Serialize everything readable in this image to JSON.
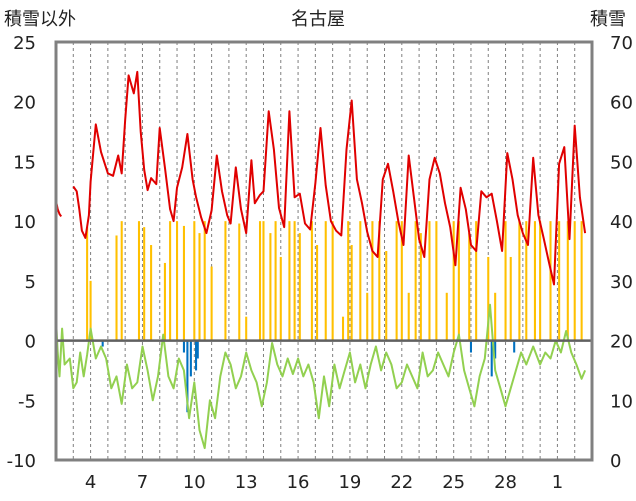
{
  "chart_data": {
    "type": "line",
    "title": "名古屋",
    "left_axis_label": "積雪以外",
    "right_axis_label": "積雪",
    "left_axis": {
      "range": [
        -10,
        25
      ],
      "ticks": [
        "-10",
        "-5",
        "0",
        "5",
        "10",
        "15",
        "20",
        "25"
      ]
    },
    "right_axis": {
      "range": [
        0,
        70
      ],
      "ticks": [
        "0",
        "10",
        "20",
        "30",
        "40",
        "50",
        "60",
        "70"
      ]
    },
    "x_range": [
      2,
      33
    ],
    "x_ticks": [
      "4",
      "7",
      "10",
      "13",
      "16",
      "19",
      "22",
      "25",
      "28",
      "1"
    ],
    "x_tick_positions": [
      4,
      7,
      10,
      13,
      16,
      19,
      22,
      25,
      28,
      31
    ],
    "grid": "vertical dashed",
    "colors": {
      "max_temp": "#e00000",
      "min_temp": "#92d050",
      "sunshine": "#ffc000",
      "precipitation": "#0070c0",
      "snow_depth": "#7030a0",
      "zero_line": "#606060",
      "frame": "#808080"
    },
    "series": [
      {
        "key": "max_temp",
        "axis": "left",
        "x": [
          2.0,
          2.1,
          2.2,
          2.3,
          2.5,
          2.7,
          3.0,
          3.2,
          3.35,
          3.5,
          3.7,
          3.9,
          4.0,
          4.3,
          4.6,
          5.0,
          5.3,
          5.6,
          5.8,
          6.0,
          6.2,
          6.5,
          6.7,
          6.9,
          7.1,
          7.3,
          7.5,
          7.8,
          8.0,
          8.3,
          8.6,
          8.8,
          9.0,
          9.3,
          9.6,
          9.9,
          10.1,
          10.4,
          10.7,
          11.0,
          11.3,
          11.6,
          11.9,
          12.1,
          12.4,
          12.7,
          13.0,
          13.3,
          13.5,
          13.8,
          14.0,
          14.3,
          14.6,
          14.9,
          15.2,
          15.5,
          15.8,
          16.1,
          16.4,
          16.7,
          17.0,
          17.3,
          17.6,
          17.9,
          18.2,
          18.5,
          18.8,
          19.1,
          19.4,
          19.7,
          20.0,
          20.3,
          20.6,
          20.9,
          21.2,
          21.5,
          21.8,
          22.1,
          22.4,
          22.7,
          23.0,
          23.3,
          23.6,
          23.9,
          24.2,
          24.5,
          24.8,
          25.1,
          25.4,
          25.7,
          26.0,
          26.3,
          26.6,
          26.9,
          27.2,
          27.5,
          27.8,
          28.1,
          28.4,
          28.7,
          29.0,
          29.3,
          29.6,
          29.9,
          30.2,
          30.5,
          30.8,
          31.1,
          31.4,
          31.7,
          32.0,
          32.3,
          32.6
        ],
        "values": [
          11.7,
          11.0,
          10.6,
          10.4,
          null,
          null,
          12.9,
          12.5,
          11.0,
          9.2,
          8.6,
          10.5,
          13.3,
          18.1,
          15.8,
          14.0,
          13.8,
          15.5,
          14.0,
          18.5,
          22.2,
          20.7,
          22.5,
          17.5,
          14.3,
          12.6,
          13.6,
          13.1,
          17.8,
          14.5,
          11.0,
          10.0,
          12.8,
          14.5,
          17.3,
          13.5,
          12.0,
          10.3,
          9.0,
          10.9,
          15.5,
          12.5,
          10.5,
          9.8,
          14.5,
          11.0,
          9.0,
          15.1,
          11.5,
          12.2,
          12.5,
          19.2,
          16.0,
          11.1,
          9.5,
          19.2,
          12.0,
          12.3,
          9.8,
          9.3,
          13.2,
          17.8,
          13.0,
          10.0,
          9.2,
          8.8,
          16.0,
          20.1,
          13.5,
          11.5,
          9.1,
          7.5,
          7.0,
          13.5,
          14.8,
          12.5,
          10.0,
          8.0,
          15.5,
          12.0,
          8.5,
          7.0,
          13.5,
          15.3,
          14.0,
          11.5,
          9.5,
          6.3,
          12.8,
          11.0,
          8.0,
          7.5,
          12.5,
          12.0,
          12.3,
          10.0,
          7.5,
          15.7,
          13.5,
          10.5,
          9.0,
          8.0,
          15.3,
          10.5,
          8.6,
          6.6,
          4.7,
          14.8,
          16.2,
          8.5,
          18.0,
          12.0,
          9.0
        ]
      },
      {
        "key": "min_temp",
        "axis": "left",
        "x": [
          2.0,
          2.1,
          2.2,
          2.35,
          2.5,
          2.8,
          3.0,
          3.2,
          3.4,
          3.6,
          3.8,
          4.0,
          4.3,
          4.6,
          4.9,
          5.2,
          5.5,
          5.8,
          6.1,
          6.4,
          6.7,
          7.0,
          7.3,
          7.6,
          7.9,
          8.2,
          8.5,
          8.8,
          9.1,
          9.4,
          9.7,
          10.0,
          10.3,
          10.6,
          10.9,
          11.2,
          11.5,
          11.8,
          12.1,
          12.4,
          12.7,
          13.0,
          13.3,
          13.6,
          13.9,
          14.2,
          14.5,
          14.8,
          15.1,
          15.4,
          15.7,
          16.0,
          16.3,
          16.6,
          16.9,
          17.2,
          17.5,
          17.8,
          18.1,
          18.4,
          18.7,
          19.0,
          19.3,
          19.6,
          19.9,
          20.2,
          20.5,
          20.8,
          21.1,
          21.4,
          21.7,
          22.0,
          22.3,
          22.6,
          22.9,
          23.2,
          23.5,
          23.8,
          24.1,
          24.4,
          24.7,
          25.0,
          25.3,
          25.6,
          25.9,
          26.2,
          26.5,
          26.8,
          27.1,
          27.4,
          27.7,
          28.0,
          28.3,
          28.6,
          28.9,
          29.2,
          29.6,
          30.0,
          30.3,
          30.6,
          30.9,
          31.2,
          31.5,
          31.8,
          32.1,
          32.4,
          32.6
        ],
        "values": [
          1.8,
          -1.0,
          -3.0,
          1.0,
          -2.0,
          -1.5,
          -4.0,
          -3.5,
          -1.0,
          -3.0,
          -1.2,
          1.0,
          -1.5,
          -0.5,
          -1.5,
          -4.0,
          -3.0,
          -5.3,
          -2.0,
          -4.0,
          -3.5,
          -0.5,
          -2.5,
          -5.0,
          -3.0,
          0.5,
          -3.0,
          -4.0,
          -1.5,
          -2.5,
          -6.5,
          -3.5,
          -7.5,
          -9.0,
          -5.0,
          -6.5,
          -3.0,
          -1.0,
          -2.0,
          -4.0,
          -3.0,
          -1.0,
          -2.5,
          -3.5,
          -5.5,
          -3.5,
          -0.2,
          -2.0,
          -3.0,
          -1.5,
          -2.8,
          -1.5,
          -3.0,
          -2.0,
          -3.5,
          -6.5,
          -3.0,
          -5.5,
          -2.0,
          -4.0,
          -2.5,
          -1.0,
          -3.5,
          -2.0,
          -4.0,
          -2.0,
          -0.5,
          -2.5,
          -1.0,
          -2.0,
          -4.0,
          -3.5,
          -2.0,
          -3.0,
          -4.0,
          -1.0,
          -3.0,
          -2.5,
          -1.0,
          -2.0,
          -3.0,
          -1.0,
          0.5,
          -2.5,
          -4.0,
          -5.5,
          -3.0,
          -1.5,
          3.0,
          -2.5,
          -4.0,
          -5.5,
          -4.0,
          -2.5,
          -1.0,
          -2.0,
          -0.5,
          -2.0,
          -1.0,
          -1.5,
          0.0,
          -1.0,
          0.8,
          -1.0,
          -2.0,
          -3.2,
          -2.5
        ]
      },
      {
        "key": "sunshine",
        "axis": "left",
        "type": "bar",
        "x": [
          3.8,
          4.0,
          5.5,
          5.8,
          6.8,
          7.1,
          7.5,
          8.3,
          8.6,
          9.0,
          9.4,
          10.0,
          10.3,
          10.6,
          11.0,
          11.8,
          12.6,
          13.0,
          13.8,
          14.0,
          14.4,
          14.7,
          15.0,
          15.5,
          15.8,
          16.1,
          16.8,
          17.1,
          17.6,
          18.0,
          18.6,
          18.9,
          19.1,
          19.6,
          20.0,
          20.3,
          20.7,
          21.1,
          21.7,
          22.0,
          22.4,
          22.8,
          23.1,
          23.6,
          24.0,
          24.6,
          25.0,
          25.3,
          25.9,
          26.3,
          27.0,
          27.4,
          28.0,
          28.3,
          28.8,
          29.2,
          29.7,
          30.0,
          30.6,
          31.1,
          31.6,
          32.0,
          32.4
        ],
        "values": [
          9.5,
          5.0,
          8.8,
          10.0,
          10.0,
          9.5,
          8.0,
          6.5,
          10.0,
          10.0,
          9.6,
          10.0,
          9.0,
          10.0,
          6.2,
          10.0,
          9.8,
          2.0,
          10.0,
          10.0,
          9.0,
          10.0,
          7.0,
          10.0,
          10.0,
          9.0,
          10.0,
          8.0,
          10.0,
          10.0,
          2.0,
          10.0,
          8.0,
          10.0,
          4.0,
          10.0,
          10.0,
          7.5,
          10.0,
          10.0,
          4.0,
          10.0,
          9.0,
          10.0,
          10.0,
          4.0,
          10.0,
          10.0,
          9.0,
          10.0,
          7.0,
          4.0,
          10.0,
          7.0,
          10.0,
          10.0,
          10.0,
          10.0,
          10.0,
          10.0,
          10.0,
          10.0,
          10.0
        ]
      },
      {
        "key": "precipitation",
        "axis": "left",
        "type": "bar",
        "x": [
          4.7,
          9.4,
          9.6,
          9.8,
          10.1,
          10.2,
          26.0,
          27.2,
          27.4,
          28.5
        ],
        "values": [
          -0.5,
          -1.0,
          -6.0,
          -3.0,
          -2.5,
          -1.5,
          -1.0,
          -3.0,
          -1.5,
          -1.0
        ]
      },
      {
        "key": "snow_depth",
        "axis": "right",
        "x": [
          28.2,
          32.6
        ],
        "values": [
          0,
          0
        ]
      }
    ]
  }
}
